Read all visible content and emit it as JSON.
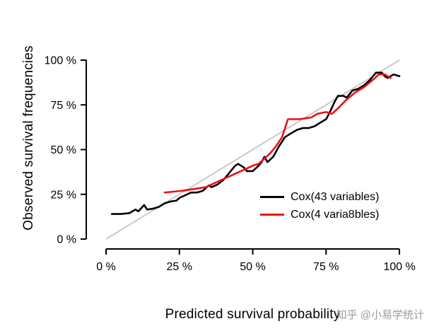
{
  "figure": {
    "background": "#ffffff"
  },
  "chart_data": {
    "type": "line",
    "title": "",
    "xlabel": "Predicted survival probability",
    "ylabel": "Observed survival frequencies",
    "xlim": [
      0,
      100
    ],
    "ylim": [
      0,
      100
    ],
    "x_ticks": [
      "0 %",
      "25 %",
      "50 %",
      "75 %",
      "100 %"
    ],
    "y_ticks": [
      "0 %",
      "25 %",
      "50 %",
      "75 %",
      "100 %"
    ],
    "grid": false,
    "legend_position": "inside-lower-right",
    "reference_line": {
      "name": "ideal-calibration-diagonal",
      "from": [
        0,
        0
      ],
      "to": [
        100,
        100
      ],
      "color": "#c9c9c9"
    },
    "series": [
      {
        "name": "Cox(43 variables)",
        "color": "#000000",
        "points": [
          [
            2,
            14
          ],
          [
            5,
            14
          ],
          [
            8,
            14.5
          ],
          [
            10,
            16.5
          ],
          [
            11,
            15.5
          ],
          [
            13,
            19
          ],
          [
            14,
            16.5
          ],
          [
            16,
            17
          ],
          [
            18,
            18
          ],
          [
            20,
            20
          ],
          [
            22,
            21
          ],
          [
            24,
            21.5
          ],
          [
            25,
            23
          ],
          [
            27,
            24.5
          ],
          [
            29,
            26
          ],
          [
            31,
            26
          ],
          [
            33,
            27
          ],
          [
            35,
            30
          ],
          [
            36,
            29
          ],
          [
            38,
            30.5
          ],
          [
            40,
            33
          ],
          [
            42,
            37
          ],
          [
            44,
            41
          ],
          [
            45,
            42
          ],
          [
            47,
            40
          ],
          [
            48,
            38
          ],
          [
            50,
            38
          ],
          [
            52,
            41
          ],
          [
            53,
            43
          ],
          [
            54,
            46
          ],
          [
            55,
            43
          ],
          [
            57,
            46
          ],
          [
            59,
            52
          ],
          [
            61,
            57
          ],
          [
            63,
            59
          ],
          [
            65,
            61
          ],
          [
            67,
            62
          ],
          [
            69,
            62
          ],
          [
            71,
            63
          ],
          [
            73,
            65
          ],
          [
            75,
            67
          ],
          [
            76,
            70
          ],
          [
            78,
            77
          ],
          [
            79,
            80
          ],
          [
            81,
            80
          ],
          [
            82,
            79
          ],
          [
            84,
            83
          ],
          [
            86,
            84
          ],
          [
            88,
            86
          ],
          [
            90,
            89
          ],
          [
            92,
            93
          ],
          [
            94,
            93
          ],
          [
            95,
            91
          ],
          [
            96,
            90
          ],
          [
            98,
            92
          ],
          [
            100,
            91
          ]
        ]
      },
      {
        "name": "Cox(4 varia8bles)",
        "color": "#ee1111",
        "points": [
          [
            20,
            26
          ],
          [
            23,
            26.5
          ],
          [
            26,
            27
          ],
          [
            30,
            28
          ],
          [
            34,
            29
          ],
          [
            38,
            32
          ],
          [
            42,
            35
          ],
          [
            46,
            38
          ],
          [
            50,
            41
          ],
          [
            52,
            42
          ],
          [
            56,
            48
          ],
          [
            58,
            52
          ],
          [
            60,
            57
          ],
          [
            62,
            67
          ],
          [
            66,
            67
          ],
          [
            70,
            68
          ],
          [
            72,
            70
          ],
          [
            75,
            71
          ],
          [
            77,
            70
          ],
          [
            79,
            73
          ],
          [
            82,
            78
          ],
          [
            85,
            82
          ],
          [
            88,
            85
          ],
          [
            91,
            89
          ],
          [
            93,
            92
          ],
          [
            95,
            92
          ],
          [
            97,
            90
          ]
        ]
      }
    ]
  },
  "watermark": {
    "text": "知乎 @小易学统计",
    "color": "#9a9a9a"
  }
}
